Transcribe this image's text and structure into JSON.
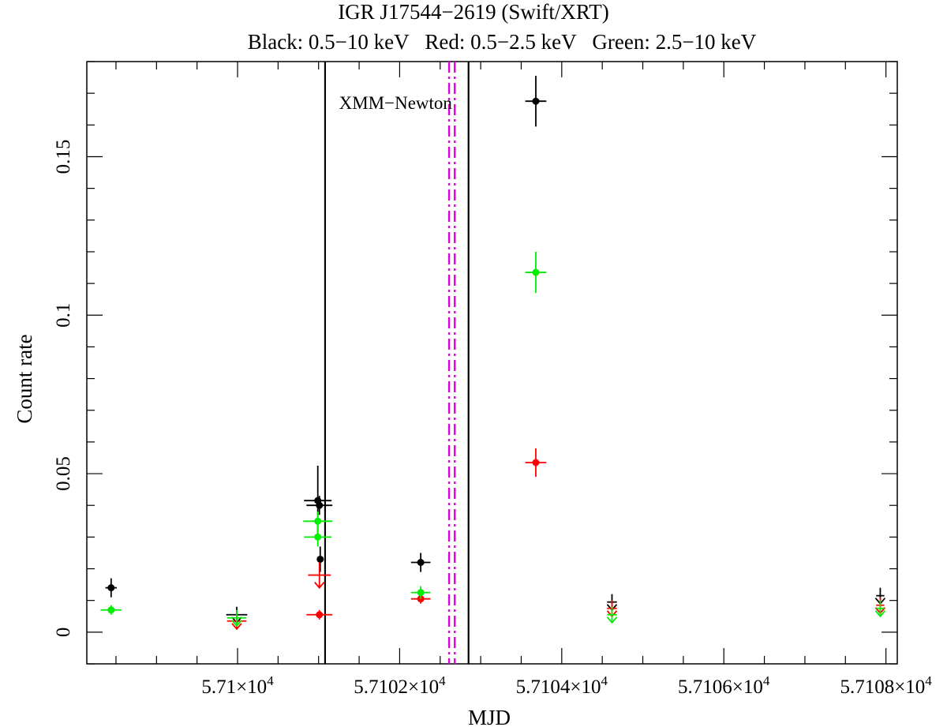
{
  "chart_data": {
    "type": "scatter",
    "title": "IGR J17544−2619 (Swift/XRT)",
    "subtitle": "Black: 0.5−10 keV   Red: 0.5−2.5 keV   Green: 2.5−10 keV",
    "xlabel": "MJD",
    "ylabel": "Count rate",
    "xlim": [
      57098.14,
      57108.14
    ],
    "ylim": [
      -0.01,
      0.18
    ],
    "x_ticks": [
      {
        "value": 57100,
        "label_main": "5.71×10",
        "label_exp": "4"
      },
      {
        "value": 57102,
        "label_main": "5.7102×10",
        "label_exp": "4"
      },
      {
        "value": 57104,
        "label_main": "5.7104×10",
        "label_exp": "4"
      },
      {
        "value": 57106,
        "label_main": "5.7106×10",
        "label_exp": "4"
      },
      {
        "value": 57108,
        "label_main": "5.7108×10",
        "label_exp": "4"
      }
    ],
    "y_ticks": [
      {
        "value": 0,
        "label": "0"
      },
      {
        "value": 0.05,
        "label": "0.05"
      },
      {
        "value": 0.1,
        "label": "0.1"
      },
      {
        "value": 0.15,
        "label": "0.15"
      }
    ],
    "annotations": [
      {
        "type": "vline",
        "x": 57101.08,
        "color": "#000000",
        "style": "solid"
      },
      {
        "type": "vline",
        "x": 57102.85,
        "color": "#000000",
        "style": "solid"
      },
      {
        "type": "vline",
        "x": 57102.61,
        "color": "#e000e0",
        "style": "dashdot"
      },
      {
        "type": "vline",
        "x": 57102.68,
        "color": "#e000e0",
        "style": "dashdot"
      },
      {
        "type": "text",
        "text": "XMM−Newton",
        "x": 57101.95,
        "y": 0.165
      }
    ],
    "series": [
      {
        "name": "0.5−10 keV",
        "color": "#000000",
        "points": [
          {
            "x": 57098.44,
            "y": 0.014,
            "xerr": 0.07,
            "yerr": 0.003,
            "upper_limit": false
          },
          {
            "x": 57099.99,
            "y": 0.0055,
            "xerr": 0.13,
            "yerr": 0.0025,
            "upper_limit": true
          },
          {
            "x": 57100.99,
            "y": 0.0415,
            "xerr": 0.17,
            "yerr": 0.011,
            "upper_limit": false
          },
          {
            "x": 57101.01,
            "y": 0.04,
            "xerr": 0.16,
            "yerr": 0.003,
            "upper_limit": false
          },
          {
            "x": 57101.02,
            "y": 0.023,
            "xerr": 0.02,
            "yerr": 0.004,
            "upper_limit": false
          },
          {
            "x": 57102.26,
            "y": 0.022,
            "xerr": 0.12,
            "yerr": 0.003,
            "upper_limit": false
          },
          {
            "x": 57103.68,
            "y": 0.1675,
            "xerr": 0.13,
            "yerr": 0.008,
            "upper_limit": false
          },
          {
            "x": 57104.62,
            "y": 0.0095,
            "xerr": 0.06,
            "yerr": 0.0025,
            "upper_limit": true
          },
          {
            "x": 57107.93,
            "y": 0.0115,
            "xerr": 0.05,
            "yerr": 0.0025,
            "upper_limit": true
          }
        ]
      },
      {
        "name": "0.5−2.5 keV",
        "color": "#ff0000",
        "points": [
          {
            "x": 57099.99,
            "y": 0.0035,
            "xerr": 0.12,
            "yerr": 0.0025,
            "upper_limit": true
          },
          {
            "x": 57101.01,
            "y": 0.018,
            "xerr": 0.14,
            "yerr": 0.004,
            "upper_limit": true
          },
          {
            "x": 57101.01,
            "y": 0.0055,
            "xerr": 0.16,
            "yerr": 0.0015,
            "upper_limit": false
          },
          {
            "x": 57102.26,
            "y": 0.0105,
            "xerr": 0.12,
            "yerr": 0.0015,
            "upper_limit": false
          },
          {
            "x": 57103.68,
            "y": 0.0535,
            "xerr": 0.13,
            "yerr": 0.0045,
            "upper_limit": false
          },
          {
            "x": 57104.62,
            "y": 0.0075,
            "xerr": 0.06,
            "yerr": 0.0025,
            "upper_limit": true
          },
          {
            "x": 57107.93,
            "y": 0.0085,
            "xerr": 0.05,
            "yerr": 0.0025,
            "upper_limit": true
          }
        ]
      },
      {
        "name": "2.5−10 keV",
        "color": "#00ee00",
        "points": [
          {
            "x": 57098.44,
            "y": 0.007,
            "xerr": 0.13,
            "yerr": 0.0015,
            "upper_limit": false
          },
          {
            "x": 57099.99,
            "y": 0.0045,
            "xerr": 0.12,
            "yerr": 0.0025,
            "upper_limit": true
          },
          {
            "x": 57100.99,
            "y": 0.035,
            "xerr": 0.18,
            "yerr": 0.003,
            "upper_limit": false
          },
          {
            "x": 57100.99,
            "y": 0.03,
            "xerr": 0.17,
            "yerr": 0.003,
            "upper_limit": false
          },
          {
            "x": 57102.26,
            "y": 0.0125,
            "xerr": 0.12,
            "yerr": 0.002,
            "upper_limit": false
          },
          {
            "x": 57103.68,
            "y": 0.1135,
            "xerr": 0.13,
            "yerr": 0.0065,
            "upper_limit": false
          },
          {
            "x": 57104.62,
            "y": 0.0055,
            "xerr": 0.06,
            "yerr": 0.0025,
            "upper_limit": true
          },
          {
            "x": 57107.93,
            "y": 0.0075,
            "xerr": 0.05,
            "yerr": 0.0025,
            "upper_limit": true
          }
        ]
      }
    ]
  }
}
